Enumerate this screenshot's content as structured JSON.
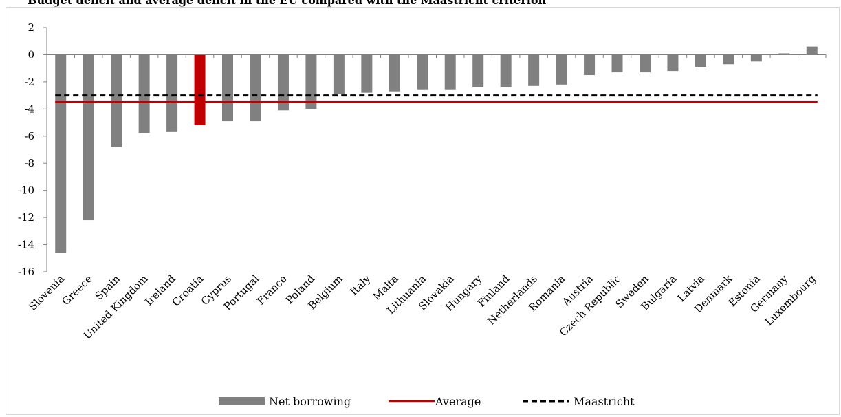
{
  "chart_data": {
    "type": "bar",
    "title": "Budget deficit and average deficit in the EU compared with the Maastricht criterion",
    "xlabel": "",
    "ylabel": "",
    "ylim": [
      -16,
      2
    ],
    "y_ticks": [
      "2",
      "0",
      "-2",
      "-4",
      "-6",
      "-8",
      "-10",
      "-12",
      "-14",
      "-16"
    ],
    "categories": [
      "Slovenia",
      "Greece",
      "Spain",
      "United Kingdom",
      "Ireland",
      "Croatia",
      "Cyprus",
      "Portugal",
      "France",
      "Poland",
      "Belgium",
      "Italy",
      "Malta",
      "Lithuania",
      "Slovakia",
      "Hungary",
      "Finland",
      "Netherlands",
      "Romania",
      "Austria",
      "Czech Republic",
      "Sweden",
      "Bulgaria",
      "Latvia",
      "Denmark",
      "Estonia",
      "Germany",
      "Luxembourg"
    ],
    "series": [
      {
        "name": "Net borrowing",
        "type": "bar",
        "color": "#808080",
        "highlight": {
          "category": "Croatia",
          "color": "#c00000"
        },
        "values": [
          -14.6,
          -12.2,
          -6.8,
          -5.8,
          -5.7,
          -5.2,
          -4.9,
          -4.9,
          -4.1,
          -4.0,
          -2.9,
          -2.8,
          -2.7,
          -2.6,
          -2.6,
          -2.4,
          -2.4,
          -2.3,
          -2.2,
          -1.5,
          -1.3,
          -1.3,
          -1.2,
          -0.9,
          -0.7,
          -0.5,
          0.1,
          0.6
        ]
      },
      {
        "name": "Average",
        "type": "line",
        "color": "#c00000",
        "value": -3.5
      },
      {
        "name": "Maastricht",
        "type": "line",
        "style": "dashed",
        "color": "#000000",
        "value": -3.0
      }
    ],
    "grid": false,
    "legend_position": "bottom"
  }
}
